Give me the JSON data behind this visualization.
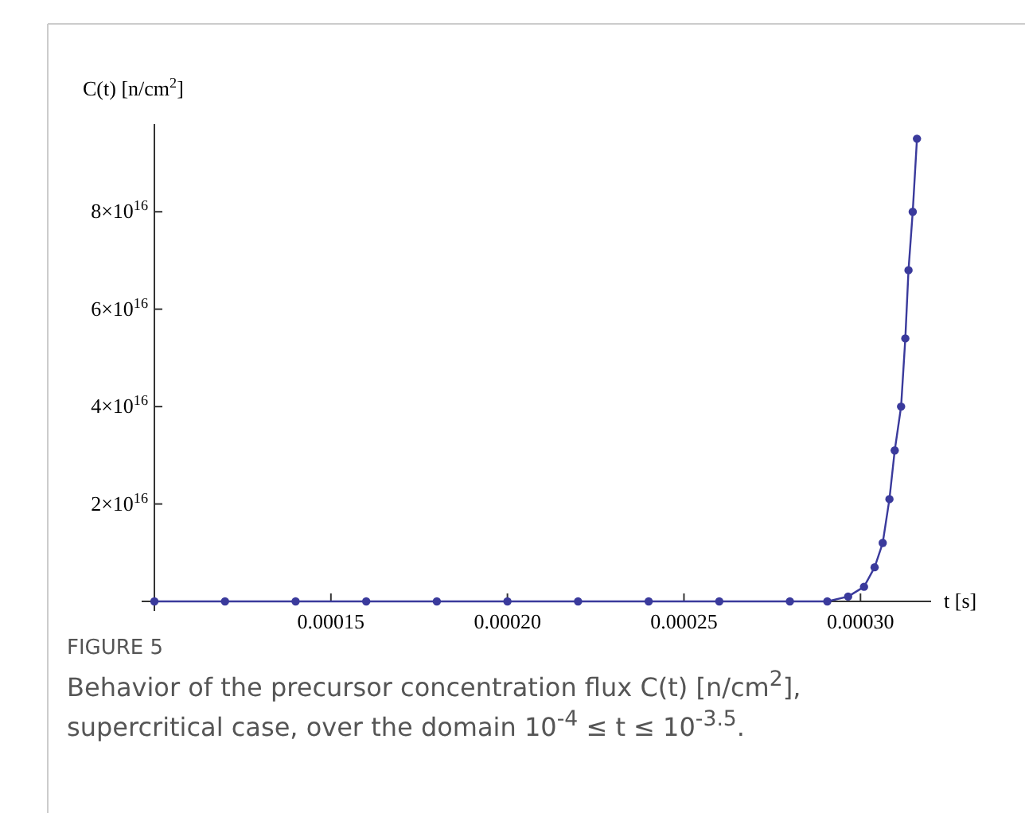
{
  "chart_data": {
    "type": "line",
    "ylabel": "C(t) [n/cm$^{2}$]",
    "xlabel": "t [s]",
    "annotations": [
      "FIGURE 5",
      "Behavior of the precursor concentration flux C(t) [n/cm$^{2}$], supercritical case, over the domain 10$^{-4}$ ≤ t ≤ 10$^{-3.5}$."
    ],
    "xlim": [
      0.0001,
      0.00032
    ],
    "xticks": [
      {
        "value": 0.00015,
        "label": "0.00015"
      },
      {
        "value": 0.0002,
        "label": "0.00020"
      },
      {
        "value": 0.00025,
        "label": "0.00025"
      },
      {
        "value": 0.0003,
        "label": "0.00030"
      }
    ],
    "ylim": [
      0,
      9.8e+16
    ],
    "yticks": [
      {
        "value": 2e+16,
        "label": "2×10$^{16}$"
      },
      {
        "value": 4e+16,
        "label": "4×10$^{16}$"
      },
      {
        "value": 6e+16,
        "label": "6×10$^{16}$"
      },
      {
        "value": 8e+16,
        "label": "8×10$^{16}$"
      }
    ],
    "marker": "circle",
    "series": [
      {
        "color": "#3a3a9c",
        "x": [
          0.0001,
          0.00012,
          0.00014,
          0.00016,
          0.00018,
          0.0002,
          0.00022,
          0.00024,
          0.00026,
          0.00028,
          0.0002906,
          0.0002965,
          0.000301,
          0.000304,
          0.0003063,
          0.0003082,
          0.0003097,
          0.0003115,
          0.0003127,
          0.0003136,
          0.0003148,
          0.000316
        ],
        "values": [
          0,
          0,
          0,
          0,
          0,
          0,
          0,
          0,
          0,
          0,
          0,
          1000000000000000.0,
          3000000000000000.0,
          7000000000000000.0,
          1.2e+16,
          2.1e+16,
          3.1e+16,
          4e+16,
          5.4e+16,
          6.8e+16,
          8e+16,
          9.5e+16
        ]
      }
    ]
  }
}
